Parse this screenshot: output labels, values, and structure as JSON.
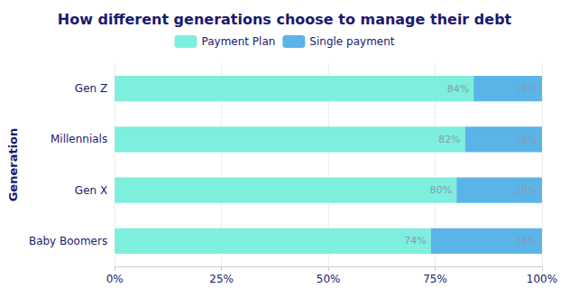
{
  "chart_data": {
    "type": "bar",
    "orientation": "horizontal",
    "stacked": true,
    "title": "How different generations choose to manage their debt",
    "ylabel": "Generation",
    "categories": [
      "Baby Boomers",
      "Gen X",
      "Millennials",
      "Gen Z"
    ],
    "series": [
      {
        "name": "Payment Plan",
        "color": "#7eeedd",
        "values": [
          74,
          80,
          82,
          84
        ],
        "value_labels": [
          "74%",
          "80%",
          "82%",
          "84%"
        ]
      },
      {
        "name": "Single payment",
        "color": "#5ab4e8",
        "values": [
          26,
          20,
          18,
          16
        ],
        "value_labels": [
          "26%",
          "20%",
          "18%",
          "16%"
        ]
      }
    ],
    "xlim": [
      0,
      100
    ],
    "xticks": [
      {
        "value": 0,
        "label": "0%"
      },
      {
        "value": 25,
        "label": "25%"
      },
      {
        "value": 50,
        "label": "50%"
      },
      {
        "value": 75,
        "label": "75%"
      },
      {
        "value": 100,
        "label": "100%"
      }
    ],
    "grid": true,
    "legend": "top",
    "data_labels": true
  }
}
